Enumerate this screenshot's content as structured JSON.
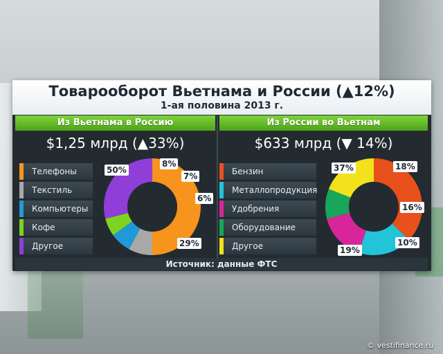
{
  "title": "Товарооборот Вьетнама и России (▲12%)",
  "subtitle": "1-ая половина 2013 г.",
  "source": "Источник: данные ФТС",
  "watermark": "© vestifinance.ru",
  "chart_data": [
    {
      "type": "pie",
      "title": "Из Вьетнама в Россию",
      "total": "$1,25 млрд (▲33%)",
      "slices": [
        {
          "name": "Телефоны",
          "value": 50,
          "label": "50%",
          "color": "#f7941d"
        },
        {
          "name": "Текстиль",
          "value": 8,
          "label": "8%",
          "color": "#a8a9a7"
        },
        {
          "name": "Компьютеры",
          "value": 7,
          "label": "7%",
          "color": "#1f9ad6"
        },
        {
          "name": "Кофе",
          "value": 6,
          "label": "6%",
          "color": "#7ed321"
        },
        {
          "name": "Другое",
          "value": 29,
          "label": "29%",
          "color": "#8f3fd8"
        }
      ]
    },
    {
      "type": "pie",
      "title": "Из России во Вьетнам",
      "total": "$633 млрд (▼ 14%)",
      "slices": [
        {
          "name": "Бензин",
          "value": 37,
          "label": "37%",
          "color": "#e8501c"
        },
        {
          "name": "Металлопродукция",
          "value": 18,
          "label": "18%",
          "color": "#22c4d8"
        },
        {
          "name": "Удобрения",
          "value": 16,
          "label": "16%",
          "color": "#d8259a"
        },
        {
          "name": "Оборудование",
          "value": 10,
          "label": "10%",
          "color": "#17a65a"
        },
        {
          "name": "Другое",
          "value": 19,
          "label": "19%",
          "color": "#f2e21b"
        }
      ]
    }
  ]
}
